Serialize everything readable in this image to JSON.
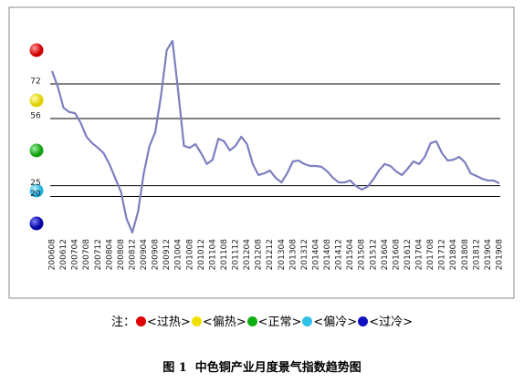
{
  "chart_data": {
    "type": "line",
    "categories": [
      "200608",
      null,
      "200612",
      null,
      "200704",
      null,
      "200708",
      null,
      "200712",
      null,
      "200804",
      null,
      "200808",
      null,
      "200812",
      null,
      "200904",
      null,
      "200908",
      null,
      "200912",
      null,
      "201004",
      null,
      "201008",
      null,
      "201012",
      null,
      "201104",
      null,
      "201108",
      null,
      "201112",
      null,
      "201204",
      null,
      "201208",
      null,
      "201212",
      null,
      "201304",
      null,
      "201308",
      null,
      "201312",
      null,
      "201404",
      null,
      "201408",
      null,
      "201412",
      null,
      "201504",
      null,
      "201508",
      null,
      "201512",
      null,
      "201604",
      null,
      "201608",
      null,
      "201612",
      null,
      "201704",
      null,
      "201708",
      null,
      "201712",
      null,
      "201804",
      null,
      "201808",
      null,
      "201812",
      null,
      "201904",
      null,
      "201908"
    ],
    "series": [
      {
        "color": "#7c7fbf",
        "values": [
          77.9,
          70.7,
          61,
          59,
          58.5,
          54,
          47.6,
          44.6,
          42.5,
          40,
          35,
          28.6,
          22.3,
          9.7,
          3.4,
          13,
          30.7,
          43.4,
          49.7,
          66.5,
          87.6,
          91.8,
          68.6,
          43.4,
          42.5,
          44.2,
          40,
          35,
          37,
          46.7,
          45.5,
          41.3,
          43.4,
          47.6,
          44.2,
          35,
          29.9,
          30.7,
          32,
          28.6,
          26.5,
          30.7,
          36.2,
          36.6,
          35,
          34.1,
          34.1,
          33.7,
          31.6,
          28.6,
          26.5,
          26.5,
          27.4,
          24.8,
          23.2,
          24.5,
          27.8,
          32,
          35,
          34.1,
          31.6,
          29.9,
          32.8,
          36.2,
          35,
          38.3,
          44.6,
          45.5,
          40,
          36.6,
          37,
          38.3,
          35.8,
          30.7,
          29.5,
          28.2,
          27.4,
          27.4,
          26.1
        ]
      }
    ],
    "ylim": [
      2,
      106
    ],
    "yticks": [
      72,
      56,
      25,
      20
    ],
    "note": {
      "prefix": "注：",
      "items": [
        {
          "label": "<过热>",
          "color": "#e00000"
        },
        {
          "label": "<偏热>",
          "color": "#f0e000"
        },
        {
          "label": "<正常>",
          "color": "#10b010"
        },
        {
          "label": "<偏冷>",
          "color": "#30c0e8"
        },
        {
          "label": "<过冷>",
          "color": "#1010c0"
        }
      ]
    },
    "caption": "图 1  中色铜产业月度景气指数趋势图"
  }
}
